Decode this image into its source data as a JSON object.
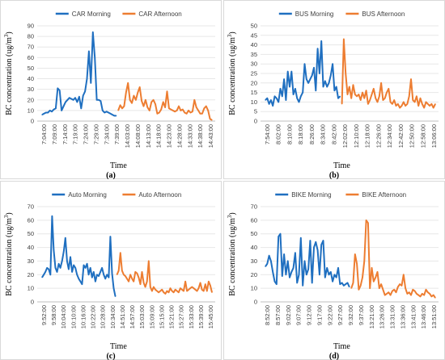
{
  "chart_data": [
    {
      "type": "line",
      "panel_label": "(a)",
      "xlabel": "Time",
      "ylabel_main": "BC concentration (ug/m",
      "ylabel_sup": "3",
      "ylabel_end": ")",
      "ylim": [
        0,
        90
      ],
      "yticks": [
        0,
        10,
        20,
        30,
        40,
        50,
        60,
        70,
        80,
        90
      ],
      "legend_position": "top",
      "series": [
        {
          "name": "CAR Morning",
          "color": "#1f6fc0",
          "values": [
            6,
            7,
            8,
            8,
            10,
            9,
            11,
            12,
            31,
            29,
            10,
            14,
            18,
            20,
            22,
            21,
            20,
            22,
            18,
            23,
            12,
            24,
            28,
            40,
            66,
            36,
            84,
            60,
            20,
            20,
            19,
            10,
            8,
            9,
            8,
            7,
            6,
            5,
            5
          ]
        },
        {
          "name": "CAR Afternoon",
          "color": "#ed7d31",
          "values": [
            10,
            15,
            12,
            14,
            27,
            36,
            20,
            17,
            24,
            20,
            27,
            32,
            19,
            14,
            20,
            13,
            10,
            18,
            20,
            16,
            7,
            8,
            11,
            18,
            13,
            28,
            12,
            11,
            10,
            9,
            10,
            14,
            10,
            11,
            8,
            7,
            10,
            8,
            9,
            20,
            13,
            10,
            7,
            7,
            12,
            14,
            10,
            2,
            1
          ]
        }
      ],
      "xticks": [
        "7:04:00",
        "7:09:00",
        "7:14:00",
        "7:19:00",
        "7:24:00",
        "7:29:00",
        "7:34:00",
        "7:39:00",
        "14:03:00",
        "14:08:00",
        "14:13:00",
        "14:18:00",
        "14:23:00",
        "14:28:00",
        "14:33:00",
        "14:38:00",
        "14:43:00"
      ]
    },
    {
      "type": "line",
      "panel_label": "(b)",
      "xlabel": "Time",
      "ylabel_main": "BC concentration (ug/m",
      "ylabel_sup": "3",
      "ylabel_end": ")",
      "ylim": [
        0,
        50
      ],
      "yticks": [
        0,
        5,
        10,
        15,
        20,
        25,
        30,
        35,
        40,
        45,
        50
      ],
      "legend_position": "top",
      "series": [
        {
          "name": "BUS Morning",
          "color": "#1f6fc0",
          "values": [
            11,
            12,
            9,
            11,
            8,
            13,
            12,
            10,
            17,
            13,
            22,
            11,
            26,
            18,
            26,
            14,
            17,
            12,
            10,
            13,
            15,
            30,
            22,
            20,
            22,
            24,
            28,
            16,
            38,
            25,
            42,
            18,
            21,
            18,
            20,
            24,
            30,
            16,
            18,
            12,
            13
          ]
        },
        {
          "name": "BUS Afternoon",
          "color": "#ed7d31",
          "values": [
            9,
            43,
            25,
            14,
            18,
            12,
            19,
            14,
            13,
            14,
            11,
            15,
            12,
            16,
            9,
            11,
            14,
            17,
            12,
            10,
            13,
            20,
            11,
            12,
            15,
            17,
            10,
            9,
            11,
            8,
            9,
            7,
            8,
            10,
            8,
            9,
            13,
            22,
            11,
            10,
            13,
            8,
            12,
            9,
            7,
            10,
            9,
            8,
            9,
            7,
            9
          ]
        }
      ],
      "xticks": [
        "7:54:00",
        "8:02:00",
        "8:10:00",
        "8:18:00",
        "8:26:00",
        "8:34:00",
        "8:42:00",
        "12:02:00",
        "12:10:00",
        "12:18:00",
        "12:26:00",
        "12:34:00",
        "12:42:00",
        "12:50:00",
        "12:58:00",
        "13:06:00"
      ]
    },
    {
      "type": "line",
      "panel_label": "(c)",
      "xlabel": "Time",
      "ylabel_main": "BC concentration (ug/m",
      "ylabel_sup": "3",
      "ylabel_end": ")",
      "ylim": [
        0,
        70
      ],
      "yticks": [
        0,
        10,
        20,
        30,
        40,
        50,
        60,
        70
      ],
      "legend_position": "top",
      "series": [
        {
          "name": "Auto Morning",
          "color": "#1f6fc0",
          "values": [
            18,
            20,
            22,
            25,
            24,
            20,
            63,
            38,
            25,
            22,
            28,
            25,
            30,
            37,
            47,
            30,
            24,
            33,
            22,
            27,
            25,
            20,
            17,
            15,
            13,
            27,
            25,
            28,
            20,
            25,
            18,
            22,
            15,
            20,
            19,
            22,
            25,
            20,
            17,
            20,
            18,
            48,
            21,
            10,
            4
          ]
        },
        {
          "name": "Auto Afternoon",
          "color": "#ed7d31",
          "values": [
            20,
            23,
            36,
            23,
            20,
            19,
            17,
            15,
            20,
            17,
            15,
            22,
            21,
            18,
            13,
            22,
            14,
            11,
            15,
            30,
            11,
            8,
            11,
            9,
            8,
            7,
            8,
            9,
            7,
            6,
            8,
            7,
            10,
            8,
            7,
            9,
            8,
            7,
            10,
            9,
            8,
            15,
            8,
            9,
            10,
            11,
            10,
            9,
            8,
            10,
            14,
            9,
            8,
            13,
            8,
            15,
            12,
            7
          ]
        }
      ],
      "xticks": [
        "9:52:00",
        "9:58:00",
        "10:04:00",
        "10:10:00",
        "10:16:00",
        "10:22:00",
        "10:28:00",
        "10:34:00",
        "14:51:00",
        "14:57:00",
        "15:03:00",
        "15:09:00",
        "15:15:00",
        "15:21:00",
        "15:27:00",
        "15:33:00",
        "15:39:00",
        "15:45:00"
      ]
    },
    {
      "type": "line",
      "panel_label": "(d)",
      "xlabel": "Time",
      "ylabel_main": "BC concentration (ug/m",
      "ylabel_sup": "3",
      "ylabel_end": ")",
      "ylim": [
        0,
        70
      ],
      "yticks": [
        0,
        10,
        20,
        30,
        40,
        50,
        60,
        70
      ],
      "legend_position": "top",
      "series": [
        {
          "name": "BIKE Morning",
          "color": "#1f6fc0",
          "values": [
            26,
            28,
            34,
            30,
            22,
            15,
            13,
            48,
            50,
            19,
            35,
            20,
            30,
            18,
            22,
            25,
            36,
            14,
            20,
            47,
            12,
            30,
            20,
            24,
            45,
            14,
            40,
            44,
            38,
            20,
            42,
            45,
            18,
            25,
            20,
            22,
            15,
            20,
            18,
            25,
            13,
            14,
            12,
            13,
            14,
            11
          ]
        },
        {
          "name": "BIKE Afternoon",
          "color": "#ed7d31",
          "values": [
            10,
            14,
            35,
            28,
            9,
            12,
            18,
            30,
            60,
            58,
            10,
            25,
            15,
            18,
            22,
            10,
            13,
            9,
            5,
            6,
            7,
            5,
            8,
            9,
            7,
            11,
            13,
            12,
            20,
            10,
            6,
            7,
            5,
            9,
            8,
            6,
            5,
            4,
            6,
            5,
            9,
            7,
            6,
            4,
            5,
            3
          ]
        }
      ],
      "xticks": [
        "8:52:00",
        "8:57:00",
        "9:02:00",
        "9:07:00",
        "9:12:00",
        "9:17:00",
        "9:22:00",
        "9:27:00",
        "9:32:00",
        "9:37:00",
        "13:21:00",
        "13:26:00",
        "13:31:00",
        "13:36:00",
        "13:41:00",
        "13:46:00",
        "13:51:00"
      ]
    }
  ]
}
